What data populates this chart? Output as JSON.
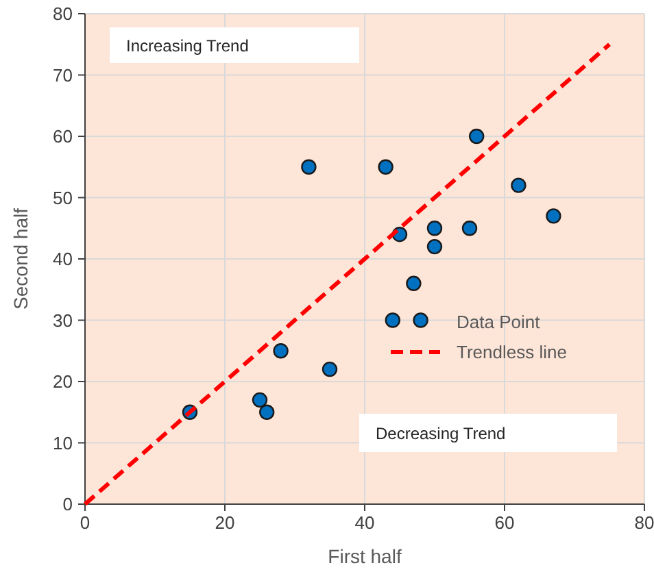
{
  "chart_data": {
    "type": "scatter",
    "xlabel": "First half",
    "ylabel": "Second half",
    "xlim": [
      0,
      80
    ],
    "xticks": [
      0,
      20,
      40,
      60,
      80
    ],
    "ylim": [
      0,
      80
    ],
    "yticks": [
      0,
      10,
      20,
      30,
      40,
      50,
      60,
      70,
      80
    ],
    "grid": true,
    "legend": "right",
    "annotations": [
      "Increasing Trend",
      "Decreasing Trend"
    ],
    "series": [
      {
        "name": "Data Point",
        "color": "#0070c0",
        "marker": "circle",
        "x": [
          15,
          25,
          26,
          28,
          32,
          35,
          43,
          44,
          45,
          47,
          48,
          50,
          50,
          55,
          56,
          62,
          67
        ],
        "values": [
          15,
          17,
          15,
          25,
          55,
          22,
          55,
          30,
          44,
          36,
          30,
          45,
          42,
          45,
          60,
          52,
          47
        ]
      },
      {
        "name": "Trendless line",
        "type": "line",
        "color": "#ff0000",
        "line_style": "dashed",
        "marker": "none",
        "x": [
          0,
          75
        ],
        "values": [
          0,
          75
        ]
      }
    ]
  }
}
